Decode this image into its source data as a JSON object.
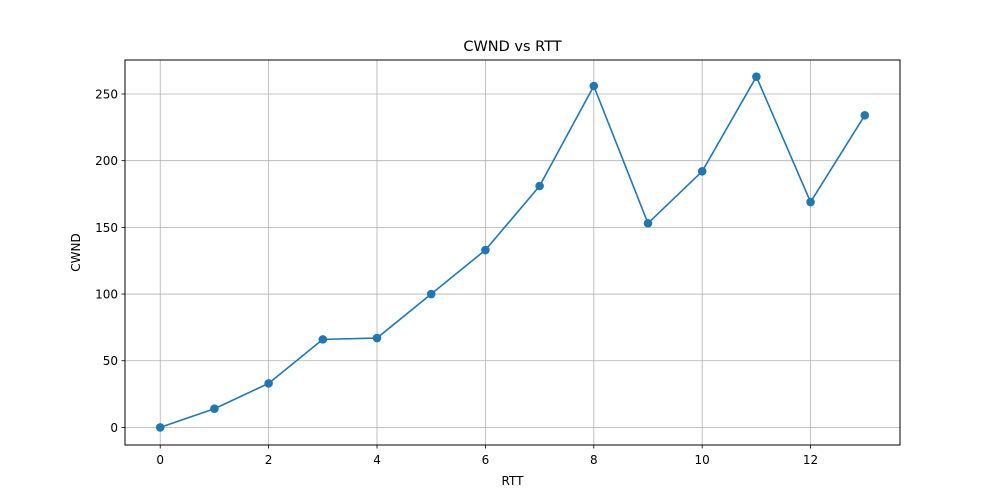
{
  "chart_data": {
    "type": "line",
    "title": "CWND vs RTT",
    "xlabel": "RTT",
    "ylabel": "CWND",
    "xlim": [
      -0.65,
      13.65
    ],
    "ylim": [
      -13.2,
      275.5
    ],
    "xticks": [
      0,
      2,
      4,
      6,
      8,
      10,
      12
    ],
    "yticks": [
      0,
      50,
      100,
      150,
      200,
      250
    ],
    "grid": true,
    "legend": "none",
    "series": [
      {
        "color": "#1f77b4",
        "marker": "circle",
        "x": [
          0,
          1,
          2,
          3,
          4,
          5,
          6,
          7,
          8,
          9,
          10,
          11,
          12,
          13
        ],
        "values": [
          0,
          14,
          33,
          66,
          67,
          100,
          133,
          181,
          256,
          153,
          192,
          263,
          169,
          234
        ]
      }
    ]
  }
}
